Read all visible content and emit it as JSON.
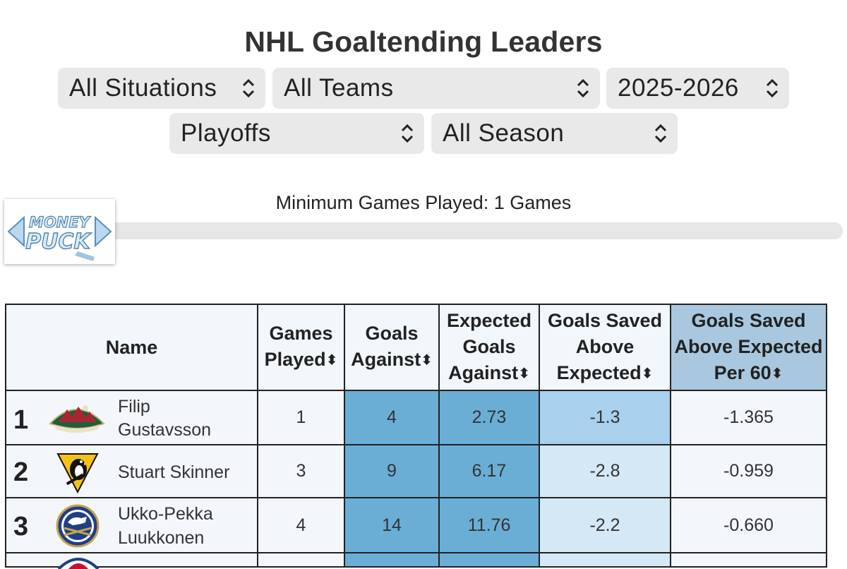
{
  "title": "NHL Goaltending Leaders",
  "filters": {
    "situation": "All Situations",
    "team": "All Teams",
    "season": "2025-2026",
    "season_type": "Playoffs",
    "period": "All Season"
  },
  "min_games_label": "Minimum Games Played: 1 Games",
  "slider_logo": {
    "line1": "MONEY",
    "line2": "PUCK"
  },
  "columns": {
    "name": "Name",
    "games_played": [
      "Games",
      "Played"
    ],
    "goals_against": [
      "Goals",
      "Against"
    ],
    "expected_goals_against": [
      "Expected",
      "Goals",
      "Against"
    ],
    "gsax": [
      "Goals Saved",
      "Above",
      "Expected"
    ],
    "gsax_per60": [
      "Goals Saved",
      "Above Expected",
      "Per 60"
    ]
  },
  "sort_glyph": "⬍",
  "rows": [
    {
      "rank": "1",
      "team_logo": "wild-logo",
      "name": [
        "Filip",
        "Gustavsson"
      ],
      "gp": "1",
      "ga": "4",
      "xga": "2.73",
      "gsax": "-1.3",
      "gsax60": "-1.365"
    },
    {
      "rank": "2",
      "team_logo": "penguins-logo",
      "name": [
        "Stuart Skinner"
      ],
      "gp": "3",
      "ga": "9",
      "xga": "6.17",
      "gsax": "-2.8",
      "gsax60": "-0.959"
    },
    {
      "rank": "3",
      "team_logo": "sabres-logo",
      "name": [
        "Ukko-Pekka",
        "Luukkonen"
      ],
      "gp": "4",
      "ga": "14",
      "xga": "11.76",
      "gsax": "-2.2",
      "gsax60": "-0.660"
    }
  ]
}
